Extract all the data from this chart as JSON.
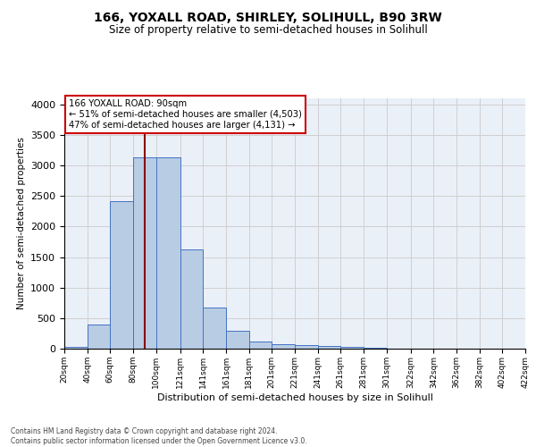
{
  "title": "166, YOXALL ROAD, SHIRLEY, SOLIHULL, B90 3RW",
  "subtitle": "Size of property relative to semi-detached houses in Solihull",
  "xlabel": "Distribution of semi-detached houses by size in Solihull",
  "ylabel": "Number of semi-detached properties",
  "bar_color": "#b8cce4",
  "bar_edge_color": "#4472c4",
  "grid_color": "#d0d0d0",
  "bg_color": "#eaf0f8",
  "vline_x": 90,
  "vline_color": "#8b0000",
  "annotation_text": "166 YOXALL ROAD: 90sqm\n← 51% of semi-detached houses are smaller (4,503)\n47% of semi-detached houses are larger (4,131) →",
  "annotation_box_color": "#ffffff",
  "annotation_box_edge": "#cc0000",
  "footer_text": "Contains HM Land Registry data © Crown copyright and database right 2024.\nContains public sector information licensed under the Open Government Licence v3.0.",
  "bin_edges": [
    20,
    40,
    60,
    80,
    100,
    121,
    141,
    161,
    181,
    201,
    221,
    241,
    261,
    281,
    301,
    322,
    342,
    362,
    382,
    402,
    422
  ],
  "bin_labels": [
    "20sqm",
    "40sqm",
    "60sqm",
    "80sqm",
    "100sqm",
    "121sqm",
    "141sqm",
    "161sqm",
    "181sqm",
    "201sqm",
    "221sqm",
    "241sqm",
    "261sqm",
    "281sqm",
    "301sqm",
    "322sqm",
    "342sqm",
    "362sqm",
    "382sqm",
    "402sqm",
    "422sqm"
  ],
  "counts": [
    30,
    390,
    2420,
    3130,
    3130,
    1630,
    680,
    300,
    115,
    70,
    55,
    50,
    30,
    15,
    5,
    5,
    3,
    2,
    1,
    1
  ],
  "ylim": [
    0,
    4100
  ],
  "yticks": [
    0,
    500,
    1000,
    1500,
    2000,
    2500,
    3000,
    3500,
    4000
  ]
}
